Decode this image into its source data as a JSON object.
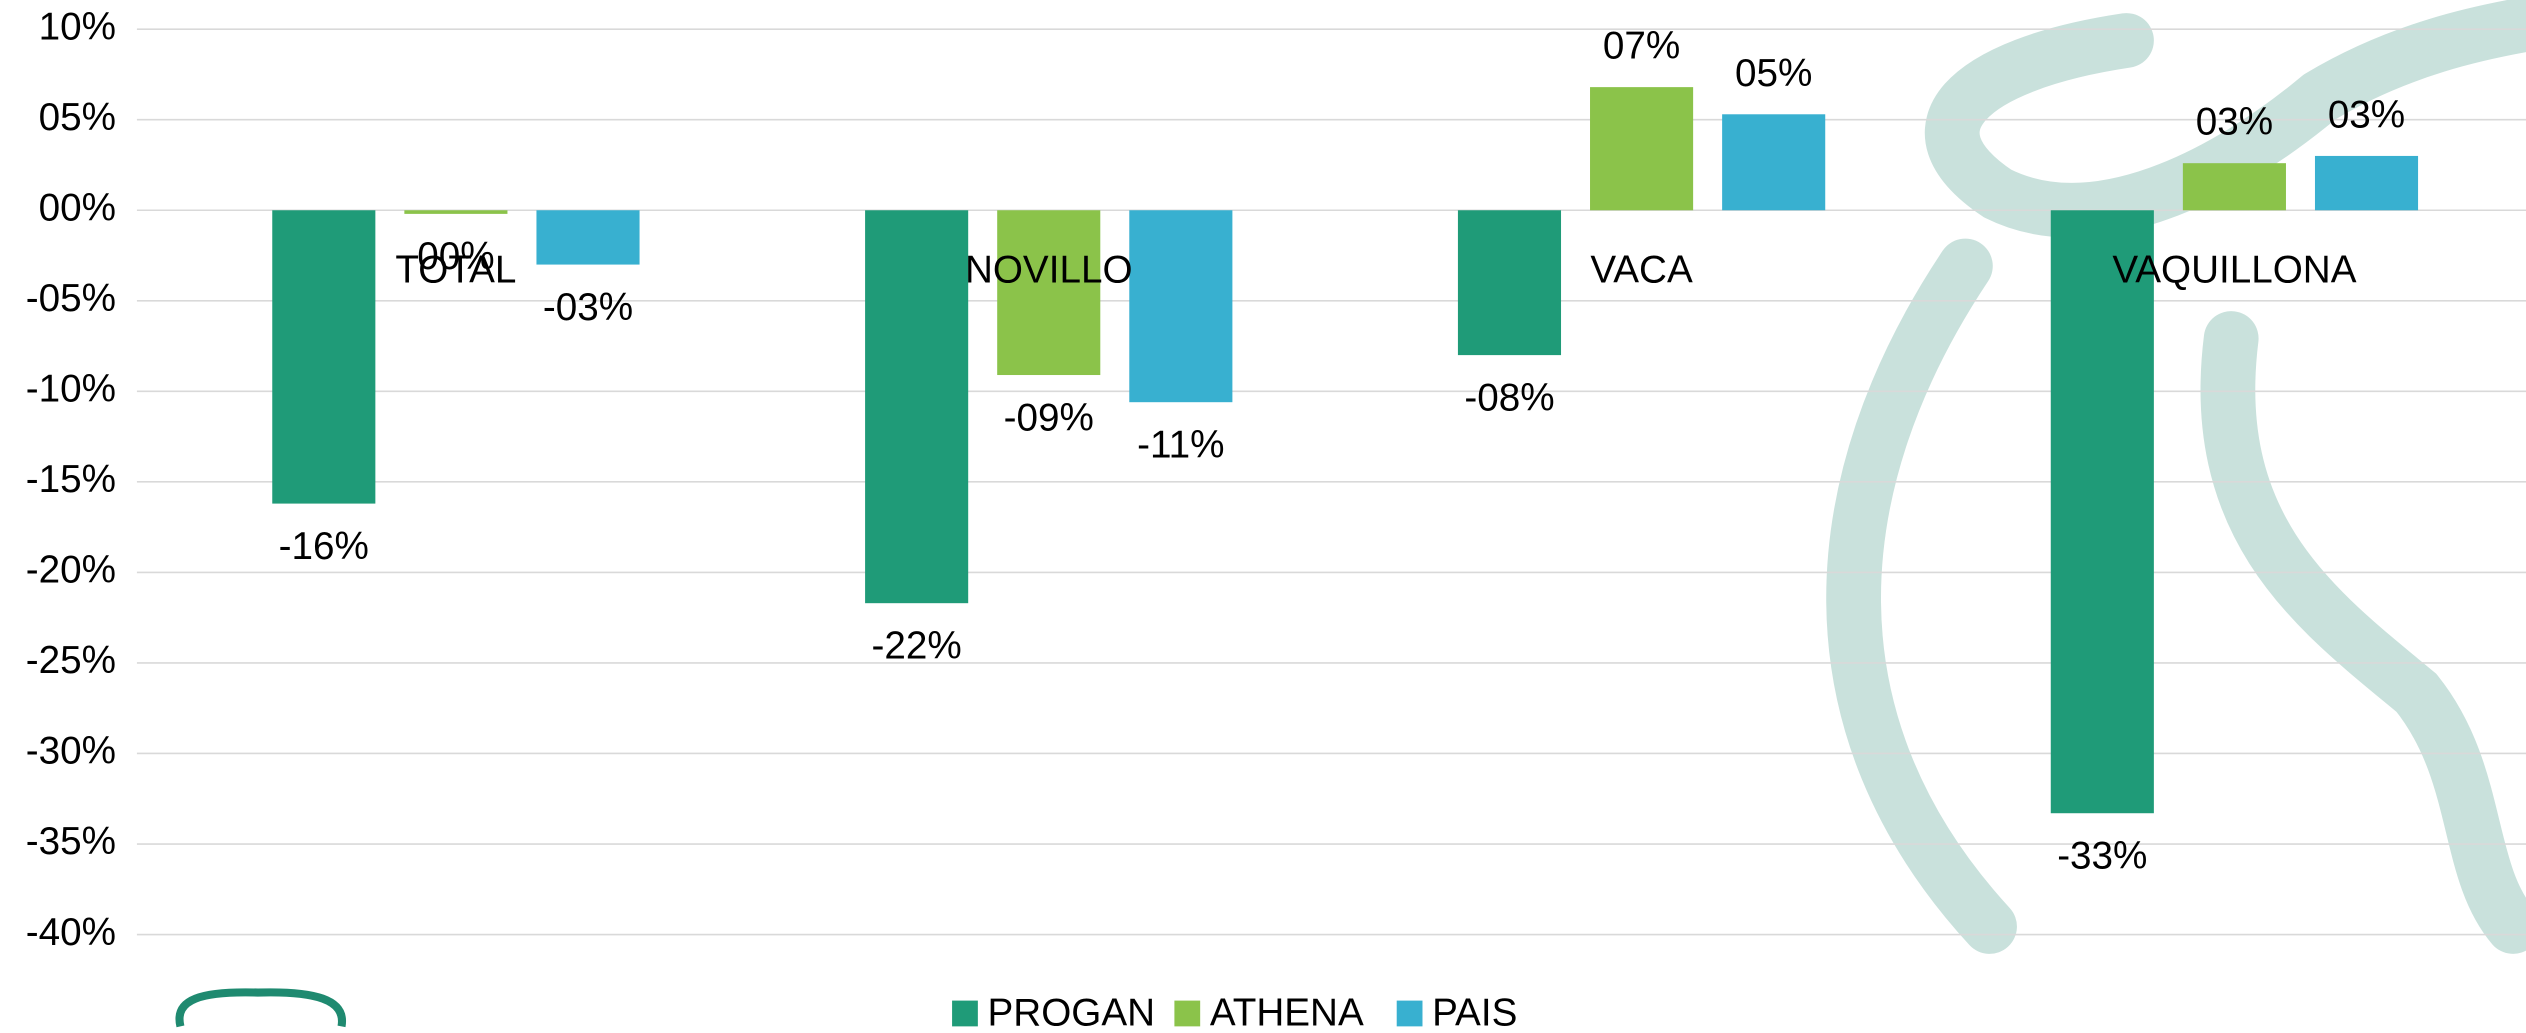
{
  "chart_data": {
    "type": "bar",
    "categories": [
      "TOTAL",
      "NOVILLO",
      "VACA",
      "VAQUILLONA"
    ],
    "series": [
      {
        "name": "PROGAN",
        "color": "#1f9b78",
        "values": [
          -16.2,
          -21.7,
          -8,
          -33.3
        ],
        "value_labels": [
          "-16%",
          "-22%",
          "-08%",
          "-33%"
        ]
      },
      {
        "name": "ATHENA",
        "color": "#8bc34a",
        "values": [
          -0.2,
          -9.1,
          6.8,
          2.6
        ],
        "value_labels": [
          "00%",
          "-09%",
          "07%",
          "03%"
        ]
      },
      {
        "name": "PAIS",
        "color": "#38b0d0",
        "values": [
          -3,
          -10.6,
          5.3,
          3.0
        ],
        "value_labels": [
          "-03%",
          "-11%",
          "05%",
          "03%"
        ]
      }
    ],
    "ylim": [
      -40,
      10
    ],
    "yticks": [
      {
        "value": 10,
        "label": "10%"
      },
      {
        "value": 5,
        "label": "05%"
      },
      {
        "value": 0,
        "label": "00%"
      },
      {
        "value": -5,
        "label": "-05%"
      },
      {
        "value": -10,
        "label": "-10%"
      },
      {
        "value": -15,
        "label": "-15%"
      },
      {
        "value": -20,
        "label": "-20%"
      },
      {
        "value": -25,
        "label": "-25%"
      },
      {
        "value": -30,
        "label": "-30%"
      },
      {
        "value": -35,
        "label": "-35%"
      },
      {
        "value": -40,
        "label": "-40%"
      }
    ],
    "grid": true,
    "legend": "bottom"
  }
}
